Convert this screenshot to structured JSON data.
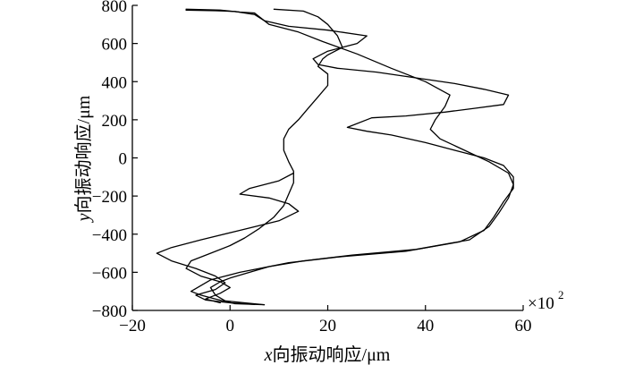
{
  "chart_data": {
    "type": "line",
    "xlabel_prefix": "x",
    "xlabel_rest": "向振动响应/μm",
    "ylabel_prefix": "y",
    "ylabel_rest": "向振动响应/μm",
    "x_multiplier_label": "×10",
    "x_multiplier_exp": "2",
    "xlim": [
      -20,
      60
    ],
    "ylim": [
      -800,
      800
    ],
    "xticks": [
      "−20",
      "0",
      "20",
      "40",
      "60"
    ],
    "yticks": [
      "800",
      "600",
      "400",
      "200",
      "0",
      "−200",
      "−400",
      "−600",
      "−800"
    ],
    "grid": false,
    "series": [
      {
        "points": [
          [
            9,
            780
          ],
          [
            15,
            770
          ],
          [
            18,
            740
          ],
          [
            20,
            700
          ],
          [
            22,
            640
          ],
          [
            23,
            580
          ],
          [
            20,
            540
          ],
          [
            19,
            520
          ],
          [
            18,
            480
          ],
          [
            20,
            440
          ],
          [
            20,
            380
          ],
          [
            18,
            320
          ],
          [
            16,
            260
          ],
          [
            14,
            200
          ],
          [
            12,
            150
          ],
          [
            11,
            100
          ],
          [
            11,
            40
          ],
          [
            12,
            -20
          ],
          [
            13,
            -70
          ],
          [
            13,
            -130
          ],
          [
            12,
            -190
          ],
          [
            11,
            -250
          ],
          [
            9,
            -310
          ],
          [
            6,
            -370
          ],
          [
            3,
            -420
          ],
          [
            0,
            -460
          ],
          [
            -4,
            -500
          ],
          [
            -8,
            -540
          ],
          [
            -9,
            -580
          ],
          [
            -6,
            -620
          ],
          [
            -2,
            -650
          ],
          [
            0,
            -680
          ],
          [
            -2,
            -710
          ],
          [
            -5,
            -740
          ],
          [
            -2,
            -760
          ]
        ]
      },
      {
        "points": [
          [
            -9,
            780
          ],
          [
            -2,
            775
          ],
          [
            2,
            765
          ],
          [
            5,
            760
          ],
          [
            6,
            740
          ],
          [
            8,
            700
          ],
          [
            14,
            660
          ],
          [
            19,
            610
          ],
          [
            26,
            545
          ],
          [
            33,
            470
          ],
          [
            40,
            400
          ],
          [
            45,
            330
          ],
          [
            44,
            270
          ],
          [
            42,
            200
          ],
          [
            41,
            150
          ],
          [
            43,
            100
          ],
          [
            48,
            40
          ],
          [
            53,
            -20
          ],
          [
            57,
            -80
          ],
          [
            58,
            -140
          ],
          [
            57,
            -210
          ],
          [
            55,
            -290
          ],
          [
            53,
            -360
          ],
          [
            49,
            -430
          ],
          [
            38,
            -480
          ],
          [
            25,
            -510
          ],
          [
            15,
            -540
          ],
          [
            8,
            -570
          ],
          [
            4,
            -600
          ],
          [
            0,
            -630
          ],
          [
            -2,
            -650
          ],
          [
            -4,
            -680
          ],
          [
            -3,
            -720
          ],
          [
            -1,
            -750
          ],
          [
            3,
            -760
          ],
          [
            7,
            -770
          ]
        ]
      },
      {
        "points": [
          [
            -9,
            775
          ],
          [
            -3,
            772
          ],
          [
            1,
            768
          ],
          [
            5,
            752
          ],
          [
            7,
            720
          ],
          [
            12,
            690
          ],
          [
            20,
            670
          ],
          [
            28,
            640
          ],
          [
            26,
            600
          ],
          [
            23,
            580
          ],
          [
            20,
            560
          ],
          [
            17,
            520
          ],
          [
            18,
            490
          ],
          [
            22,
            470
          ],
          [
            30,
            450
          ],
          [
            38,
            420
          ],
          [
            46,
            390
          ],
          [
            52,
            360
          ],
          [
            57,
            330
          ],
          [
            56,
            280
          ],
          [
            50,
            260
          ],
          [
            44,
            240
          ],
          [
            36,
            220
          ],
          [
            29,
            210
          ],
          [
            24,
            160
          ],
          [
            28,
            140
          ],
          [
            33,
            120
          ],
          [
            40,
            80
          ],
          [
            46,
            40
          ],
          [
            52,
            0
          ],
          [
            56,
            -40
          ],
          [
            58,
            -100
          ],
          [
            58,
            -160
          ],
          [
            56,
            -230
          ],
          [
            54,
            -310
          ],
          [
            52,
            -380
          ],
          [
            47,
            -440
          ],
          [
            36,
            -490
          ],
          [
            22,
            -520
          ],
          [
            12,
            -550
          ],
          [
            6,
            -580
          ],
          [
            2,
            -600
          ],
          [
            -1,
            -620
          ],
          [
            -4,
            -640
          ],
          [
            -6,
            -670
          ],
          [
            -8,
            -700
          ],
          [
            -6,
            -720
          ],
          [
            -3,
            -740
          ],
          [
            1,
            -765
          ],
          [
            7,
            -770
          ]
        ]
      },
      {
        "points": [
          [
            13,
            -80
          ],
          [
            10,
            -120
          ],
          [
            4,
            -160
          ],
          [
            2,
            -190
          ],
          [
            8,
            -210
          ],
          [
            12,
            -240
          ],
          [
            14,
            -280
          ],
          [
            10,
            -330
          ],
          [
            2,
            -380
          ],
          [
            -6,
            -430
          ],
          [
            -12,
            -470
          ],
          [
            -15,
            -500
          ],
          [
            -12,
            -540
          ],
          [
            -7,
            -580
          ],
          [
            -3,
            -620
          ],
          [
            -1,
            -655
          ],
          [
            -3,
            -690
          ],
          [
            -7,
            -720
          ],
          [
            -5,
            -745
          ],
          [
            0,
            -760
          ],
          [
            5,
            -768
          ]
        ]
      }
    ]
  }
}
